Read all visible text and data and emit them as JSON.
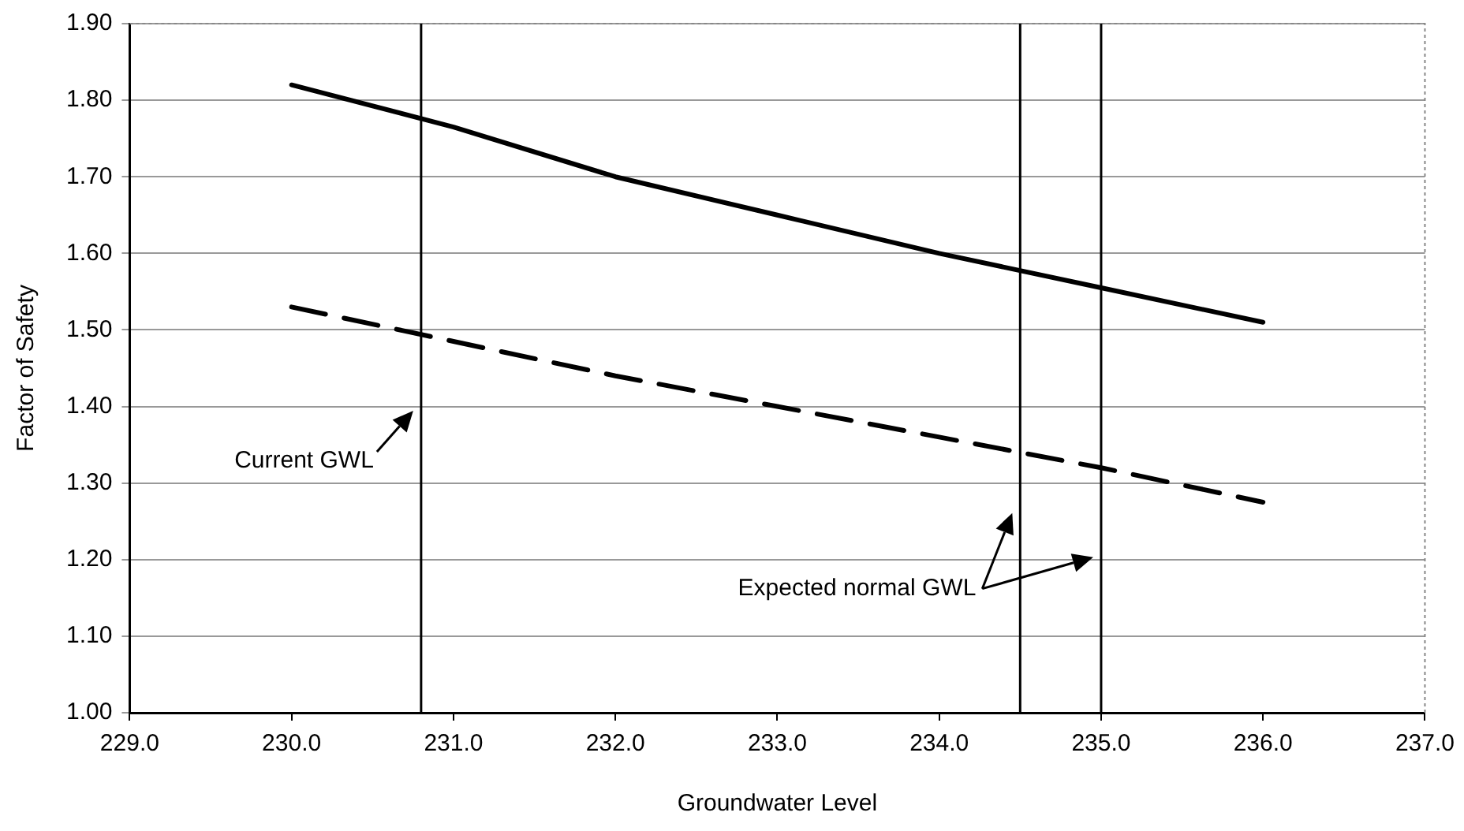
{
  "chart_data": {
    "type": "line",
    "xlabel": "Groundwater Level",
    "ylabel": "Factor of Safety",
    "x": [
      230,
      231,
      232,
      233,
      234,
      235,
      236
    ],
    "series": [
      {
        "color": "#000000",
        "line_style": "solid",
        "values": [
          1.82,
          1.765,
          1.7,
          1.65,
          1.6,
          1.555,
          1.51
        ]
      },
      {
        "color": "#000000",
        "line_style": "dashed",
        "values": [
          1.53,
          1.485,
          1.44,
          1.4,
          1.36,
          1.32,
          1.275
        ]
      }
    ],
    "xlim": [
      229,
      237
    ],
    "xticks": [
      {
        "value": 229,
        "label": "229.0"
      },
      {
        "value": 230,
        "label": "230.0"
      },
      {
        "value": 231,
        "label": "231.0"
      },
      {
        "value": 232,
        "label": "232.0"
      },
      {
        "value": 233,
        "label": "233.0"
      },
      {
        "value": 234,
        "label": "234.0"
      },
      {
        "value": 235,
        "label": "235.0"
      },
      {
        "value": 236,
        "label": "236.0"
      },
      {
        "value": 237,
        "label": "237.0"
      }
    ],
    "ylim": [
      1.0,
      1.9
    ],
    "yticks": [
      {
        "value": 1.0,
        "label": "1.00"
      },
      {
        "value": 1.1,
        "label": "1.10"
      },
      {
        "value": 1.2,
        "label": "1.20"
      },
      {
        "value": 1.3,
        "label": "1.30"
      },
      {
        "value": 1.4,
        "label": "1.40"
      },
      {
        "value": 1.5,
        "label": "1.50"
      },
      {
        "value": 1.6,
        "label": "1.60"
      },
      {
        "value": 1.7,
        "label": "1.70"
      },
      {
        "value": 1.8,
        "label": "1.80"
      },
      {
        "value": 1.9,
        "label": "1.90"
      }
    ],
    "ref_lines": [
      {
        "axis": "x",
        "value": 230.8,
        "label": "Current GWL",
        "color": "#000000"
      },
      {
        "axis": "x",
        "value": 234.5,
        "label": "Expected normal GWL",
        "color": "#000000"
      },
      {
        "axis": "x",
        "value": 235.0,
        "color": "#000000"
      }
    ],
    "grid": "y",
    "legend": false,
    "marker": "none"
  }
}
